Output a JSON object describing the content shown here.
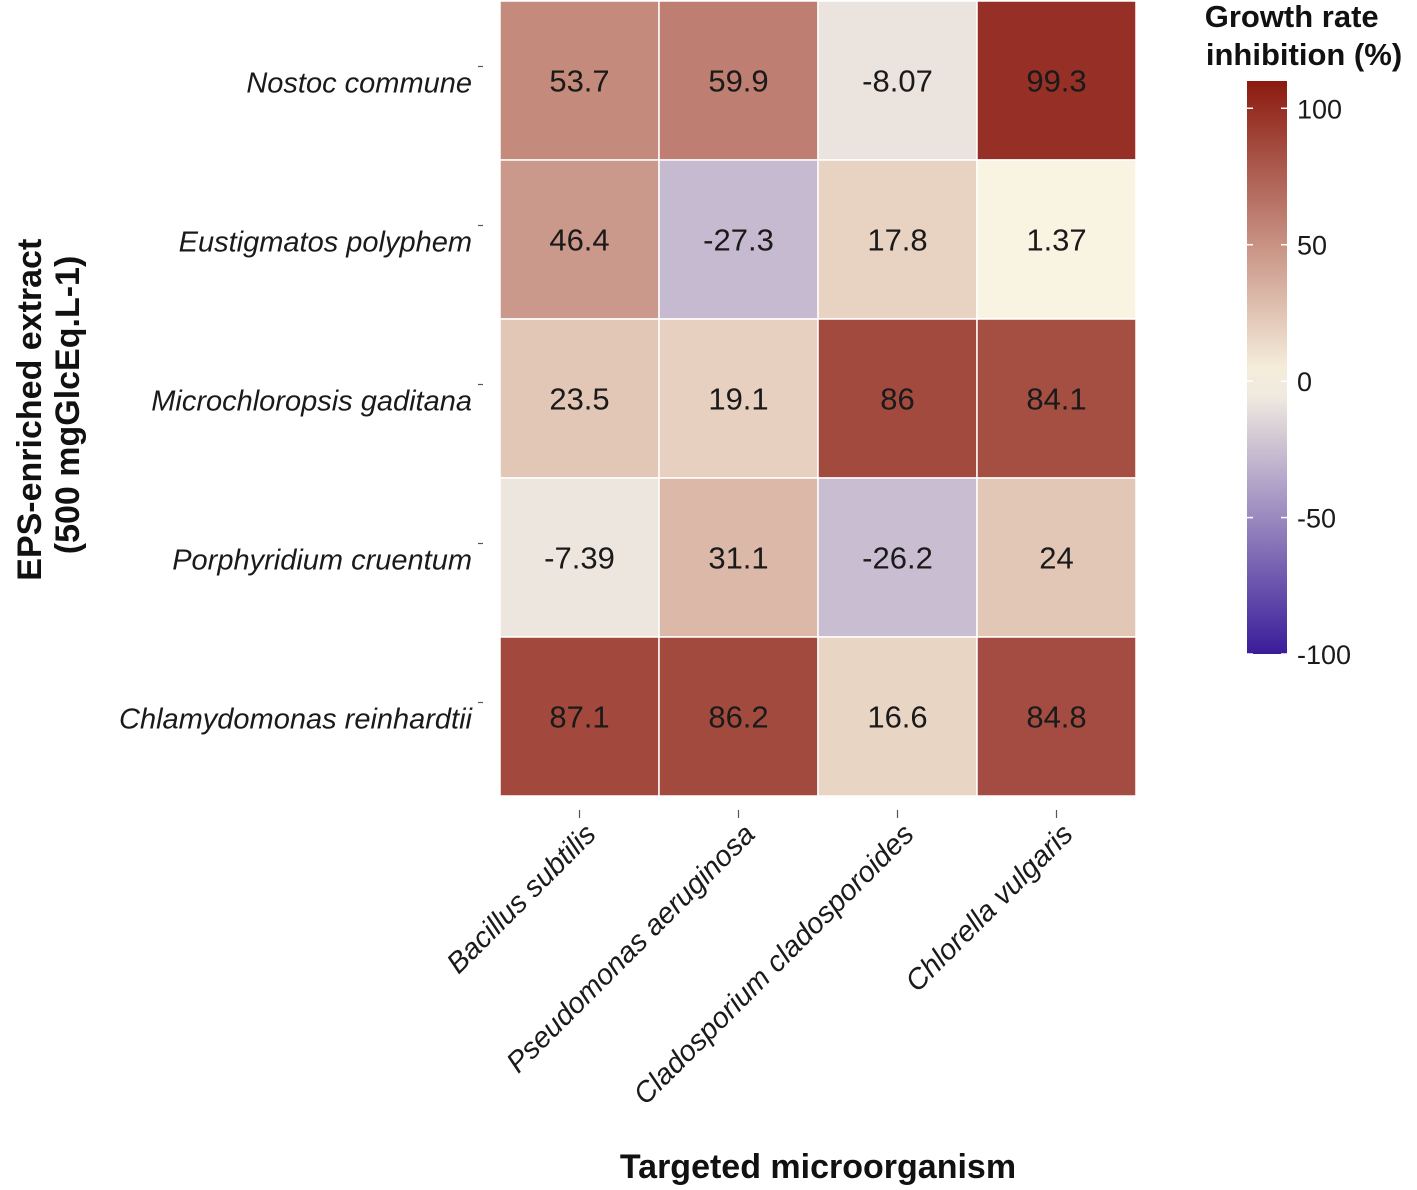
{
  "chart_data": {
    "type": "heatmap",
    "xlabel": "Targeted microorganism",
    "ylabel": [
      "EPS-enriched extract",
      "(500 mgGlcEq.L-1)"
    ],
    "columns": [
      "Bacillus subtilis",
      "Pseudomonas aeruginosa",
      "Cladosporium cladosporoides",
      "Chlorella vulgaris"
    ],
    "rows": [
      "Nostoc commune",
      "Eustigmatos polyphem",
      "Microchloropsis gaditana",
      "Porphyridium cruentum",
      "Chlamydomonas reinhardtii"
    ],
    "values": [
      [
        53.7,
        59.9,
        -8.07,
        99.3
      ],
      [
        46.4,
        -27.3,
        17.8,
        1.37
      ],
      [
        23.5,
        19.1,
        86,
        84.1
      ],
      [
        -7.39,
        31.1,
        -26.2,
        24
      ],
      [
        87.1,
        86.2,
        16.6,
        84.8
      ]
    ],
    "value_labels": [
      [
        "53.7",
        "59.9",
        "-8.07",
        "99.3"
      ],
      [
        "46.4",
        "-27.3",
        "17.8",
        "1.37"
      ],
      [
        "23.5",
        "19.1",
        "86",
        "84.1"
      ],
      [
        "-7.39",
        "31.1",
        "-26.2",
        "24"
      ],
      [
        "87.1",
        "86.2",
        "16.6",
        "84.8"
      ]
    ],
    "legend": {
      "title": [
        "Growth rate",
        "inhibition (%)"
      ],
      "range": [
        -100,
        110
      ],
      "ticks": [
        100,
        50,
        0,
        -50,
        -100
      ],
      "tick_labels": [
        "100",
        "50",
        "0",
        "-50",
        "-100"
      ],
      "placement": "right"
    },
    "colors": {
      "low": "#3a1c9a",
      "mid": "#faf6e4",
      "high": "#8b1a10",
      "gridline": "#ffffff"
    }
  }
}
